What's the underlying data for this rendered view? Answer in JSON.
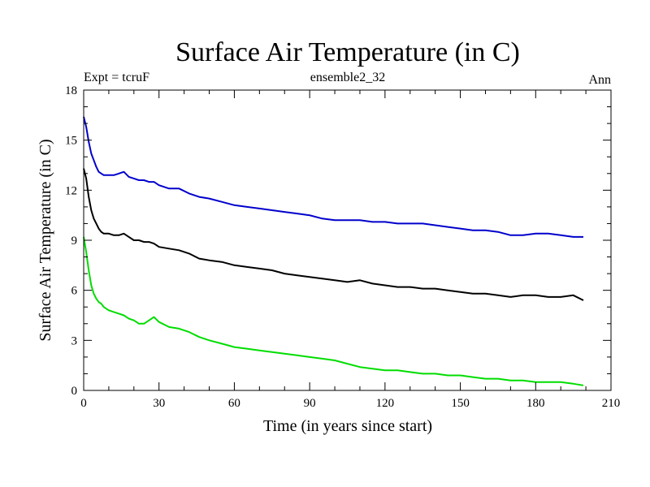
{
  "chart_data": {
    "type": "line",
    "title": "Surface Air Temperature (in C)",
    "subtitle_left": "Expt = tcruF",
    "subtitle_center": "ensemble2_32",
    "subtitle_right": "Ann",
    "xlabel": "Time (in years since start)",
    "ylabel": "Surface Air Temperature (in C)",
    "xlim": [
      0,
      210
    ],
    "ylim": [
      0,
      18
    ],
    "xticks": [
      0,
      30,
      60,
      90,
      120,
      150,
      180,
      210
    ],
    "yticks": [
      0,
      3,
      6,
      9,
      12,
      15,
      18
    ],
    "x_minor_step": 10,
    "y_minor_step": 1,
    "grid": false,
    "series": [
      {
        "color": "#0000cc",
        "x": [
          0,
          1,
          2,
          3,
          4,
          5,
          6,
          7,
          8,
          9,
          10,
          12,
          14,
          16,
          18,
          20,
          22,
          24,
          26,
          28,
          30,
          34,
          38,
          42,
          46,
          50,
          55,
          60,
          65,
          70,
          75,
          80,
          85,
          90,
          95,
          100,
          105,
          110,
          115,
          120,
          125,
          130,
          135,
          140,
          145,
          150,
          155,
          160,
          165,
          170,
          175,
          180,
          185,
          190,
          195,
          199
        ],
        "values": [
          16.4,
          15.8,
          14.9,
          14.2,
          13.8,
          13.4,
          13.1,
          13.0,
          12.9,
          12.9,
          12.9,
          12.9,
          13.0,
          13.1,
          12.8,
          12.7,
          12.6,
          12.6,
          12.5,
          12.5,
          12.3,
          12.1,
          12.1,
          11.8,
          11.6,
          11.5,
          11.3,
          11.1,
          11.0,
          10.9,
          10.8,
          10.7,
          10.6,
          10.5,
          10.3,
          10.2,
          10.2,
          10.2,
          10.1,
          10.1,
          10.0,
          10.0,
          10.0,
          9.9,
          9.8,
          9.7,
          9.6,
          9.6,
          9.5,
          9.3,
          9.3,
          9.4,
          9.4,
          9.3,
          9.2,
          9.2
        ]
      },
      {
        "color": "#000000",
        "x": [
          0,
          1,
          2,
          3,
          4,
          5,
          6,
          7,
          8,
          9,
          10,
          12,
          14,
          16,
          18,
          20,
          22,
          24,
          26,
          28,
          30,
          34,
          38,
          42,
          46,
          50,
          55,
          60,
          65,
          70,
          75,
          80,
          85,
          90,
          95,
          100,
          105,
          110,
          115,
          120,
          125,
          130,
          135,
          140,
          145,
          150,
          155,
          160,
          165,
          170,
          175,
          180,
          185,
          190,
          195,
          199
        ],
        "values": [
          13.3,
          12.7,
          11.6,
          10.8,
          10.3,
          10.0,
          9.7,
          9.5,
          9.4,
          9.4,
          9.4,
          9.3,
          9.3,
          9.4,
          9.2,
          9.0,
          9.0,
          8.9,
          8.9,
          8.8,
          8.6,
          8.5,
          8.4,
          8.2,
          7.9,
          7.8,
          7.7,
          7.5,
          7.4,
          7.3,
          7.2,
          7.0,
          6.9,
          6.8,
          6.7,
          6.6,
          6.5,
          6.6,
          6.4,
          6.3,
          6.2,
          6.2,
          6.1,
          6.1,
          6.0,
          5.9,
          5.8,
          5.8,
          5.7,
          5.6,
          5.7,
          5.7,
          5.6,
          5.6,
          5.7,
          5.4
        ]
      },
      {
        "color": "#00dd00",
        "x": [
          0,
          1,
          2,
          3,
          4,
          5,
          6,
          7,
          8,
          9,
          10,
          12,
          14,
          16,
          18,
          20,
          22,
          24,
          26,
          28,
          30,
          34,
          38,
          42,
          46,
          50,
          55,
          60,
          65,
          70,
          75,
          80,
          85,
          90,
          95,
          100,
          105,
          110,
          115,
          120,
          125,
          130,
          135,
          140,
          145,
          150,
          155,
          160,
          165,
          170,
          175,
          180,
          185,
          190,
          195,
          199
        ],
        "values": [
          9.2,
          8.3,
          7.2,
          6.3,
          5.8,
          5.5,
          5.3,
          5.2,
          5.0,
          4.9,
          4.8,
          4.7,
          4.6,
          4.5,
          4.3,
          4.2,
          4.0,
          4.0,
          4.2,
          4.4,
          4.1,
          3.8,
          3.7,
          3.5,
          3.2,
          3.0,
          2.8,
          2.6,
          2.5,
          2.4,
          2.3,
          2.2,
          2.1,
          2.0,
          1.9,
          1.8,
          1.6,
          1.4,
          1.3,
          1.2,
          1.2,
          1.1,
          1.0,
          1.0,
          0.9,
          0.9,
          0.8,
          0.7,
          0.7,
          0.6,
          0.6,
          0.5,
          0.5,
          0.5,
          0.4,
          0.3
        ]
      }
    ]
  }
}
